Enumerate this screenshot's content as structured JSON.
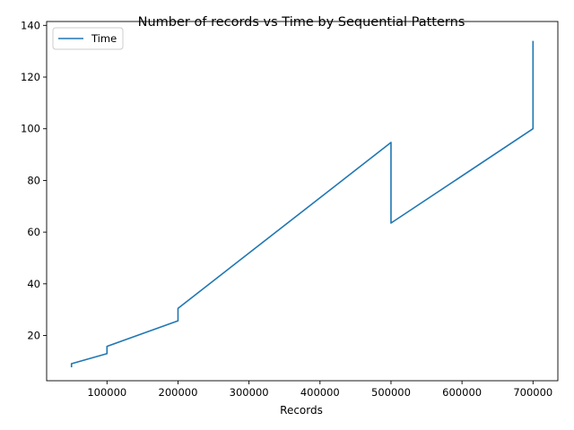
{
  "chart_data": {
    "type": "line",
    "title": "Number of records vs Time by Sequential Patterns",
    "xlabel": "Records",
    "ylabel": "",
    "xlim": [
      15000,
      735000
    ],
    "ylim": [
      2.5,
      141.5
    ],
    "xticks": [
      100000,
      200000,
      300000,
      400000,
      500000,
      600000,
      700000
    ],
    "xtick_labels": [
      "100000",
      "200000",
      "300000",
      "400000",
      "500000",
      "600000",
      "700000"
    ],
    "yticks": [
      20,
      40,
      60,
      80,
      100,
      120,
      140
    ],
    "ytick_labels": [
      "20",
      "40",
      "60",
      "80",
      "100",
      "120",
      "140"
    ],
    "grid": false,
    "legend": {
      "position": "top-left",
      "entries": [
        "Time"
      ]
    },
    "series": [
      {
        "name": "Time",
        "color": "#1f77b4",
        "points": [
          [
            50000,
            7.7
          ],
          [
            50000,
            9.1
          ],
          [
            100000,
            13.0
          ],
          [
            100000,
            15.8
          ],
          [
            200000,
            25.7
          ],
          [
            200000,
            30.5
          ],
          [
            500000,
            94.7
          ],
          [
            500000,
            63.5
          ],
          [
            700000,
            100.0
          ],
          [
            700000,
            134.0
          ]
        ]
      }
    ]
  }
}
